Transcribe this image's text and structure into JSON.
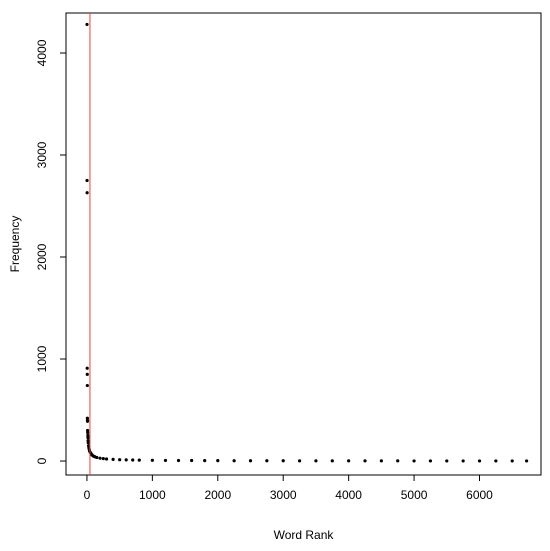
{
  "chart_data": {
    "type": "scatter",
    "x_label": "Word Rank",
    "y_label": "Frequency",
    "x": [
      1,
      2,
      3,
      4,
      5,
      6,
      7,
      8,
      9,
      10,
      12,
      14,
      16,
      18,
      20,
      25,
      30,
      35,
      40,
      50,
      60,
      70,
      80,
      100,
      120,
      150,
      200,
      250,
      300,
      400,
      500,
      600,
      700,
      800,
      1000,
      1200,
      1400,
      1600,
      1800,
      2000,
      2250,
      2500,
      2750,
      3000,
      3250,
      3500,
      3750,
      4000,
      4250,
      4500,
      4750,
      5000,
      5250,
      5500,
      5750,
      6000,
      6250,
      6500,
      6720
    ],
    "values": [
      4280,
      2750,
      2630,
      910,
      850,
      740,
      420,
      400,
      390,
      300,
      280,
      250,
      230,
      200,
      180,
      150,
      130,
      115,
      100,
      85,
      75,
      65,
      58,
      48,
      42,
      35,
      28,
      24,
      20,
      16,
      13,
      11,
      10,
      9,
      7,
      6,
      5,
      5,
      4,
      4,
      3,
      3,
      3,
      3,
      2,
      2,
      2,
      2,
      2,
      2,
      2,
      1,
      1,
      1,
      1,
      1,
      1,
      1,
      1
    ],
    "color": "#000000",
    "vline": {
      "value": 46,
      "color": "#e8413c"
    },
    "xlim": [
      -320,
      6940
    ],
    "xticks": [
      0,
      1000,
      2000,
      3000,
      4000,
      5000,
      6000
    ],
    "ylim": [
      -137,
      4392
    ],
    "yticks": [
      0,
      1000,
      2000,
      3000,
      4000
    ]
  }
}
